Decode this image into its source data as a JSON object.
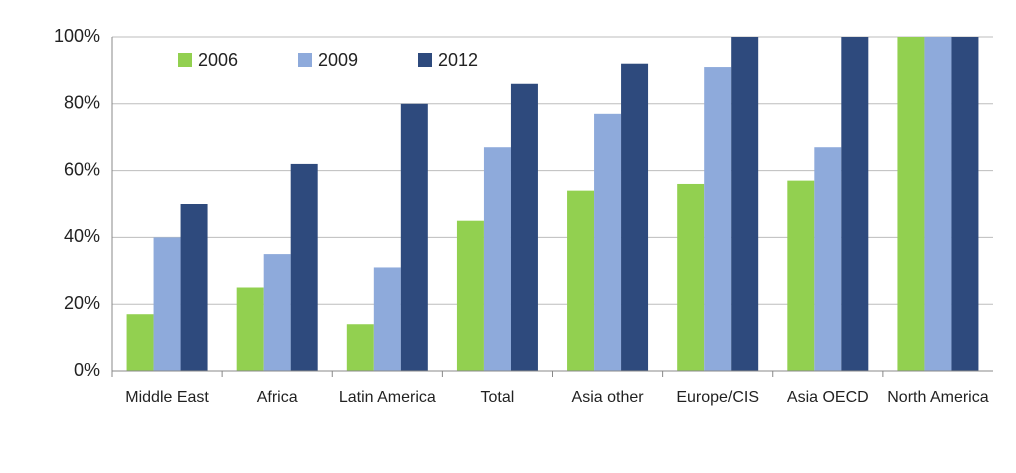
{
  "chart_data": {
    "type": "bar",
    "categories": [
      "Middle East",
      "Africa",
      "Latin America",
      "Total",
      "Asia other",
      "Europe/CIS",
      "Asia OECD",
      "North America"
    ],
    "series": [
      {
        "name": "2006",
        "color": "#92d050",
        "values": [
          17,
          25,
          14,
          45,
          54,
          56,
          57,
          100
        ]
      },
      {
        "name": "2009",
        "color": "#8eaadb",
        "values": [
          40,
          35,
          31,
          67,
          77,
          91,
          67,
          100
        ]
      },
      {
        "name": "2012",
        "color": "#2e4a7d",
        "values": [
          50,
          62,
          80,
          86,
          92,
          100,
          100,
          100
        ]
      }
    ],
    "ylim": [
      0,
      100
    ],
    "yticks": [
      {
        "value": 0,
        "label": "0%"
      },
      {
        "value": 20,
        "label": "20%"
      },
      {
        "value": 40,
        "label": "40%"
      },
      {
        "value": 60,
        "label": "60%"
      },
      {
        "value": 80,
        "label": "80%"
      },
      {
        "value": 100,
        "label": "100%"
      }
    ],
    "grid": true,
    "legend": "top-left"
  }
}
